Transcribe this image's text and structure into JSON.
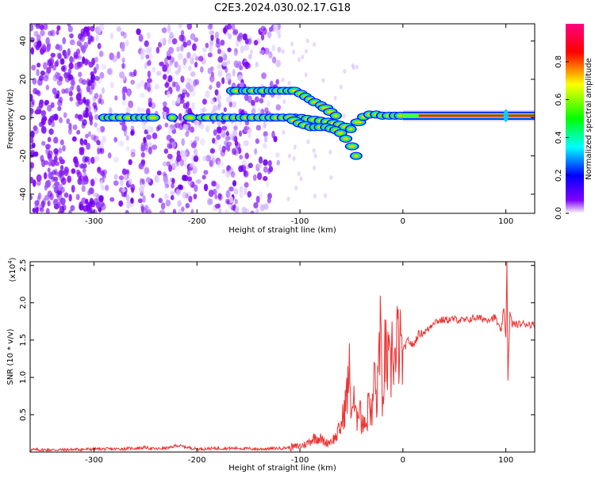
{
  "title": "C2E3.2024.030.02.17.G18",
  "chart_data": [
    {
      "type": "heatmap",
      "xlabel": "Height of straight line (km)",
      "ylabel": "Frequency (Hz)",
      "xlim": [
        -362,
        128
      ],
      "ylim": [
        -50,
        49
      ],
      "xticks": [
        -300,
        -200,
        -100,
        0,
        100
      ],
      "xtick_labels": [
        "-300",
        "-200",
        "-100",
        "0",
        "100"
      ],
      "yticks": [
        -40,
        -20,
        0,
        20,
        40
      ],
      "ytick_labels": [
        "-40",
        "-20",
        "0",
        "20",
        "40"
      ],
      "colorbar": {
        "label": "Normalized spectral amplitude",
        "range": [
          0,
          1
        ],
        "ticks": [
          0.0,
          0.2,
          0.4,
          0.6,
          0.8
        ],
        "tick_labels": [
          "0.0",
          "0.2",
          "0.4",
          "0.6",
          "0.8"
        ],
        "colors": [
          "#ffffff",
          "#7f00ff",
          "#0000ff",
          "#00ffff",
          "#00ff00",
          "#ffff00",
          "#ff0000",
          "#ff0080"
        ]
      },
      "features": [
        {
          "name": "carrier",
          "x": [
            -290,
            -250,
            -200,
            -150,
            -100,
            -75,
            -60,
            -50,
            -40,
            -30,
            -20,
            0,
            50,
            100,
            128
          ],
          "y": [
            0,
            0,
            0,
            0,
            0,
            -2,
            -4,
            -6,
            0,
            2,
            1,
            1,
            1,
            1,
            1
          ]
        },
        {
          "name": "upper-branch",
          "x": [
            -165,
            -130,
            -105,
            -95,
            -85,
            -75,
            -65
          ],
          "y": [
            14,
            14,
            14,
            11,
            8,
            5,
            1
          ]
        },
        {
          "name": "lower-branch",
          "x": [
            -110,
            -100,
            -90,
            -75,
            -62,
            -55,
            -50,
            -45
          ],
          "y": [
            0,
            -3,
            -5,
            -5,
            -7,
            -11,
            -15,
            -20
          ]
        }
      ],
      "noise_band_x": [
        -362,
        -120
      ]
    },
    {
      "type": "line",
      "xlabel": "Height of straight line (km)",
      "ylabel": "SNR (10 * v/v)",
      "yscale_label": "(x10",
      "yscale_exp": "4",
      "yscale_close": ")",
      "xlim": [
        -362,
        128
      ],
      "ylim": [
        0,
        2.55
      ],
      "xticks": [
        -300,
        -200,
        -100,
        0,
        100
      ],
      "xtick_labels": [
        "-300",
        "-200",
        "-100",
        "0",
        "100"
      ],
      "yticks": [
        0.5,
        1.0,
        1.5,
        2.0,
        2.5
      ],
      "ytick_labels": [
        "0.5",
        "1.0",
        "1.5",
        "2.0",
        "2.5"
      ],
      "color": "#ee3333",
      "series": [
        {
          "x": [
            -362,
            -330,
            -300,
            -280,
            -260,
            -250,
            -240,
            -225,
            -220,
            -200,
            -180,
            -160,
            -140,
            -120,
            -110,
            -100,
            -95,
            -90,
            -85,
            -80,
            -75,
            -70,
            -65,
            -60,
            -55,
            -52,
            -50,
            -48,
            -45,
            -42,
            -40,
            -38,
            -35,
            -33,
            -30,
            -28,
            -25,
            -22,
            -20,
            -18,
            -15,
            -12,
            -10,
            -7,
            -5,
            -2,
            0,
            5,
            10,
            15,
            20,
            25,
            30,
            40,
            50,
            60,
            70,
            80,
            90,
            95,
            98,
            100,
            101,
            102,
            104,
            106,
            110,
            120,
            128
          ],
          "y": [
            0.03,
            0.03,
            0.04,
            0.04,
            0.05,
            0.06,
            0.04,
            0.06,
            0.09,
            0.04,
            0.05,
            0.05,
            0.04,
            0.05,
            0.06,
            0.08,
            0.1,
            0.15,
            0.2,
            0.18,
            0.12,
            0.15,
            0.2,
            0.35,
            0.7,
            1.05,
            0.55,
            0.7,
            0.4,
            0.8,
            0.3,
            0.5,
            0.35,
            0.8,
            0.4,
            1.1,
            0.6,
            1.95,
            0.4,
            1.3,
            1.2,
            1.0,
            1.5,
            1.1,
            1.55,
            1.3,
            1.35,
            1.5,
            1.42,
            1.58,
            1.6,
            1.65,
            1.75,
            1.77,
            1.78,
            1.76,
            1.8,
            1.78,
            1.8,
            1.6,
            1.9,
            1.55,
            2.55,
            1.0,
            1.85,
            1.72,
            1.71,
            1.72,
            1.7
          ]
        }
      ]
    }
  ]
}
